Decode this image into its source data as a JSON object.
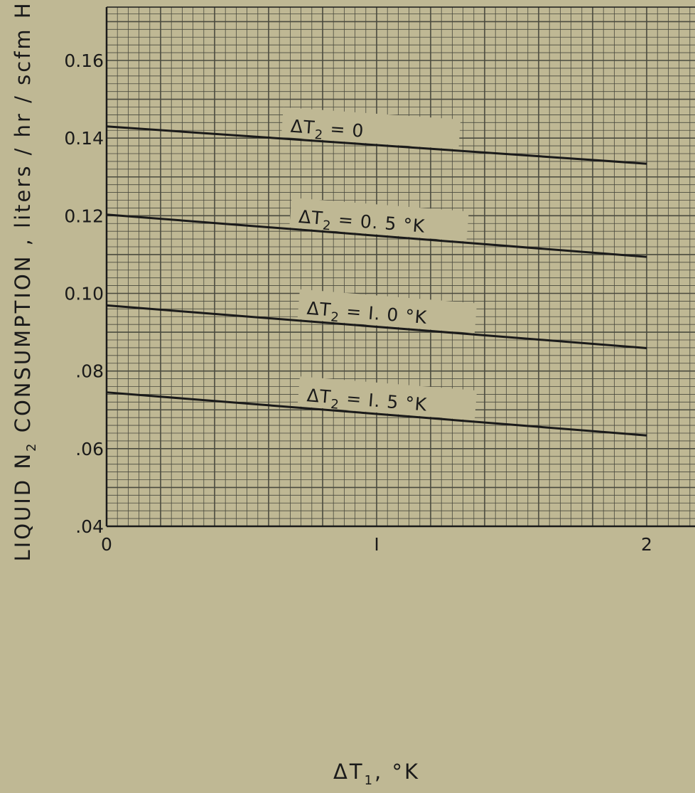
{
  "chart_data": {
    "type": "line",
    "xlabel": "ΔT",
    "xlabel_subscript": "1",
    "xlabel_unit": ",  °K",
    "ylabel_pre": "LIQUID N",
    "ylabel_subscript": "2",
    "ylabel_post": " CONSUMPTION , liters / hr / scfm He",
    "xlim": [
      0,
      2.2
    ],
    "ylim": [
      0.04,
      0.17
    ],
    "x_ticks": [
      0,
      1,
      2
    ],
    "x_tick_labels": [
      "0",
      "I",
      "2"
    ],
    "y_ticks": [
      0.04,
      0.06,
      0.08,
      0.1,
      0.12,
      0.14,
      0.16
    ],
    "y_tick_labels": [
      ".04",
      ".06",
      ".08",
      "0.10",
      "0.12",
      "0.14",
      "0.16"
    ],
    "grid": true,
    "series": [
      {
        "name": "ΔT2 = 0",
        "label_main": "ΔT",
        "label_sub": "2",
        "label_rest": " = 0",
        "x": [
          0,
          2
        ],
        "values": [
          0.143,
          0.1334
        ]
      },
      {
        "name": "ΔT2 = 0.5 °K",
        "label_main": "ΔT",
        "label_sub": "2",
        "label_rest": " = 0. 5 °K",
        "x": [
          0,
          2
        ],
        "values": [
          0.1203,
          0.1094
        ]
      },
      {
        "name": "ΔT2 = 1.0 °K",
        "label_main": "ΔT",
        "label_sub": "2",
        "label_rest": " = I. 0 °K",
        "x": [
          0,
          2
        ],
        "values": [
          0.0969,
          0.0859
        ]
      },
      {
        "name": "ΔT2 = 1.5 °K",
        "label_main": "ΔT",
        "label_sub": "2",
        "label_rest": " = I. 5 °K",
        "x": [
          0,
          2
        ],
        "values": [
          0.0745,
          0.0634
        ]
      }
    ],
    "colors": {
      "background": "#bfb894",
      "grid_minor": "#4a4a3e",
      "ink": "#1a1a1a"
    }
  }
}
